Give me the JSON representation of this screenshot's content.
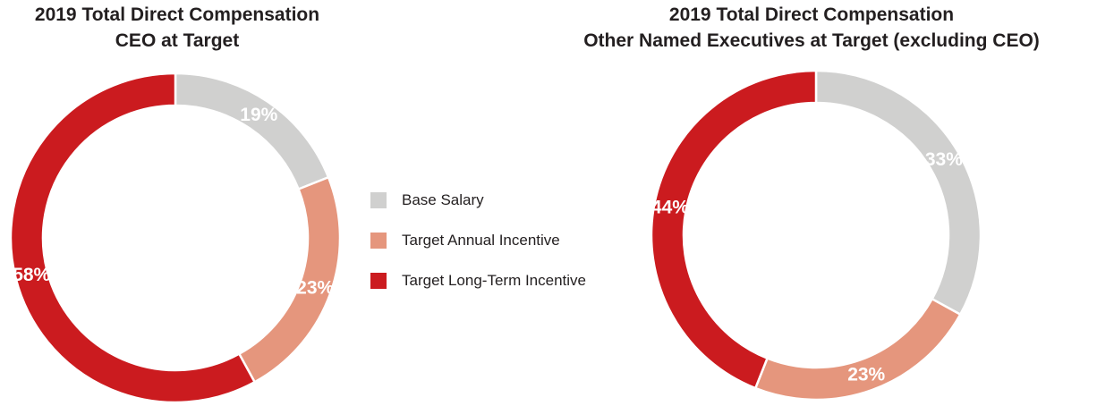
{
  "colors": {
    "base_salary": "#d0d0cf",
    "annual_incentive": "#e5967d",
    "long_term_incentive": "#cb1b1f"
  },
  "legend": [
    {
      "label": "Base Salary",
      "color": "#d0d0cf"
    },
    {
      "label": "Target Annual Incentive",
      "color": "#e5967d"
    },
    {
      "label": "Target Long-Term Incentive",
      "color": "#cb1b1f"
    }
  ],
  "chart_data": [
    {
      "type": "pie",
      "title": "2019 Total Direct Compensation",
      "subtitle": "CEO at Target",
      "categories": [
        "Base Salary",
        "Target Annual Incentive",
        "Target Long-Term Incentive"
      ],
      "values": [
        19,
        23,
        58
      ],
      "labels": [
        "19%",
        "23%",
        "58%"
      ],
      "donut": true,
      "colors": [
        "#d0d0cf",
        "#e5967d",
        "#cb1b1f"
      ],
      "legend": "shared-center"
    },
    {
      "type": "pie",
      "title": "2019 Total Direct Compensation",
      "subtitle": "Other Named Executives at Target (excluding CEO)",
      "categories": [
        "Base Salary",
        "Target Annual Incentive",
        "Target Long-Term Incentive"
      ],
      "values": [
        33,
        23,
        44
      ],
      "labels": [
        "33%",
        "23%",
        "44%"
      ],
      "donut": true,
      "colors": [
        "#d0d0cf",
        "#e5967d",
        "#cb1b1f"
      ],
      "legend": "shared-center"
    }
  ]
}
